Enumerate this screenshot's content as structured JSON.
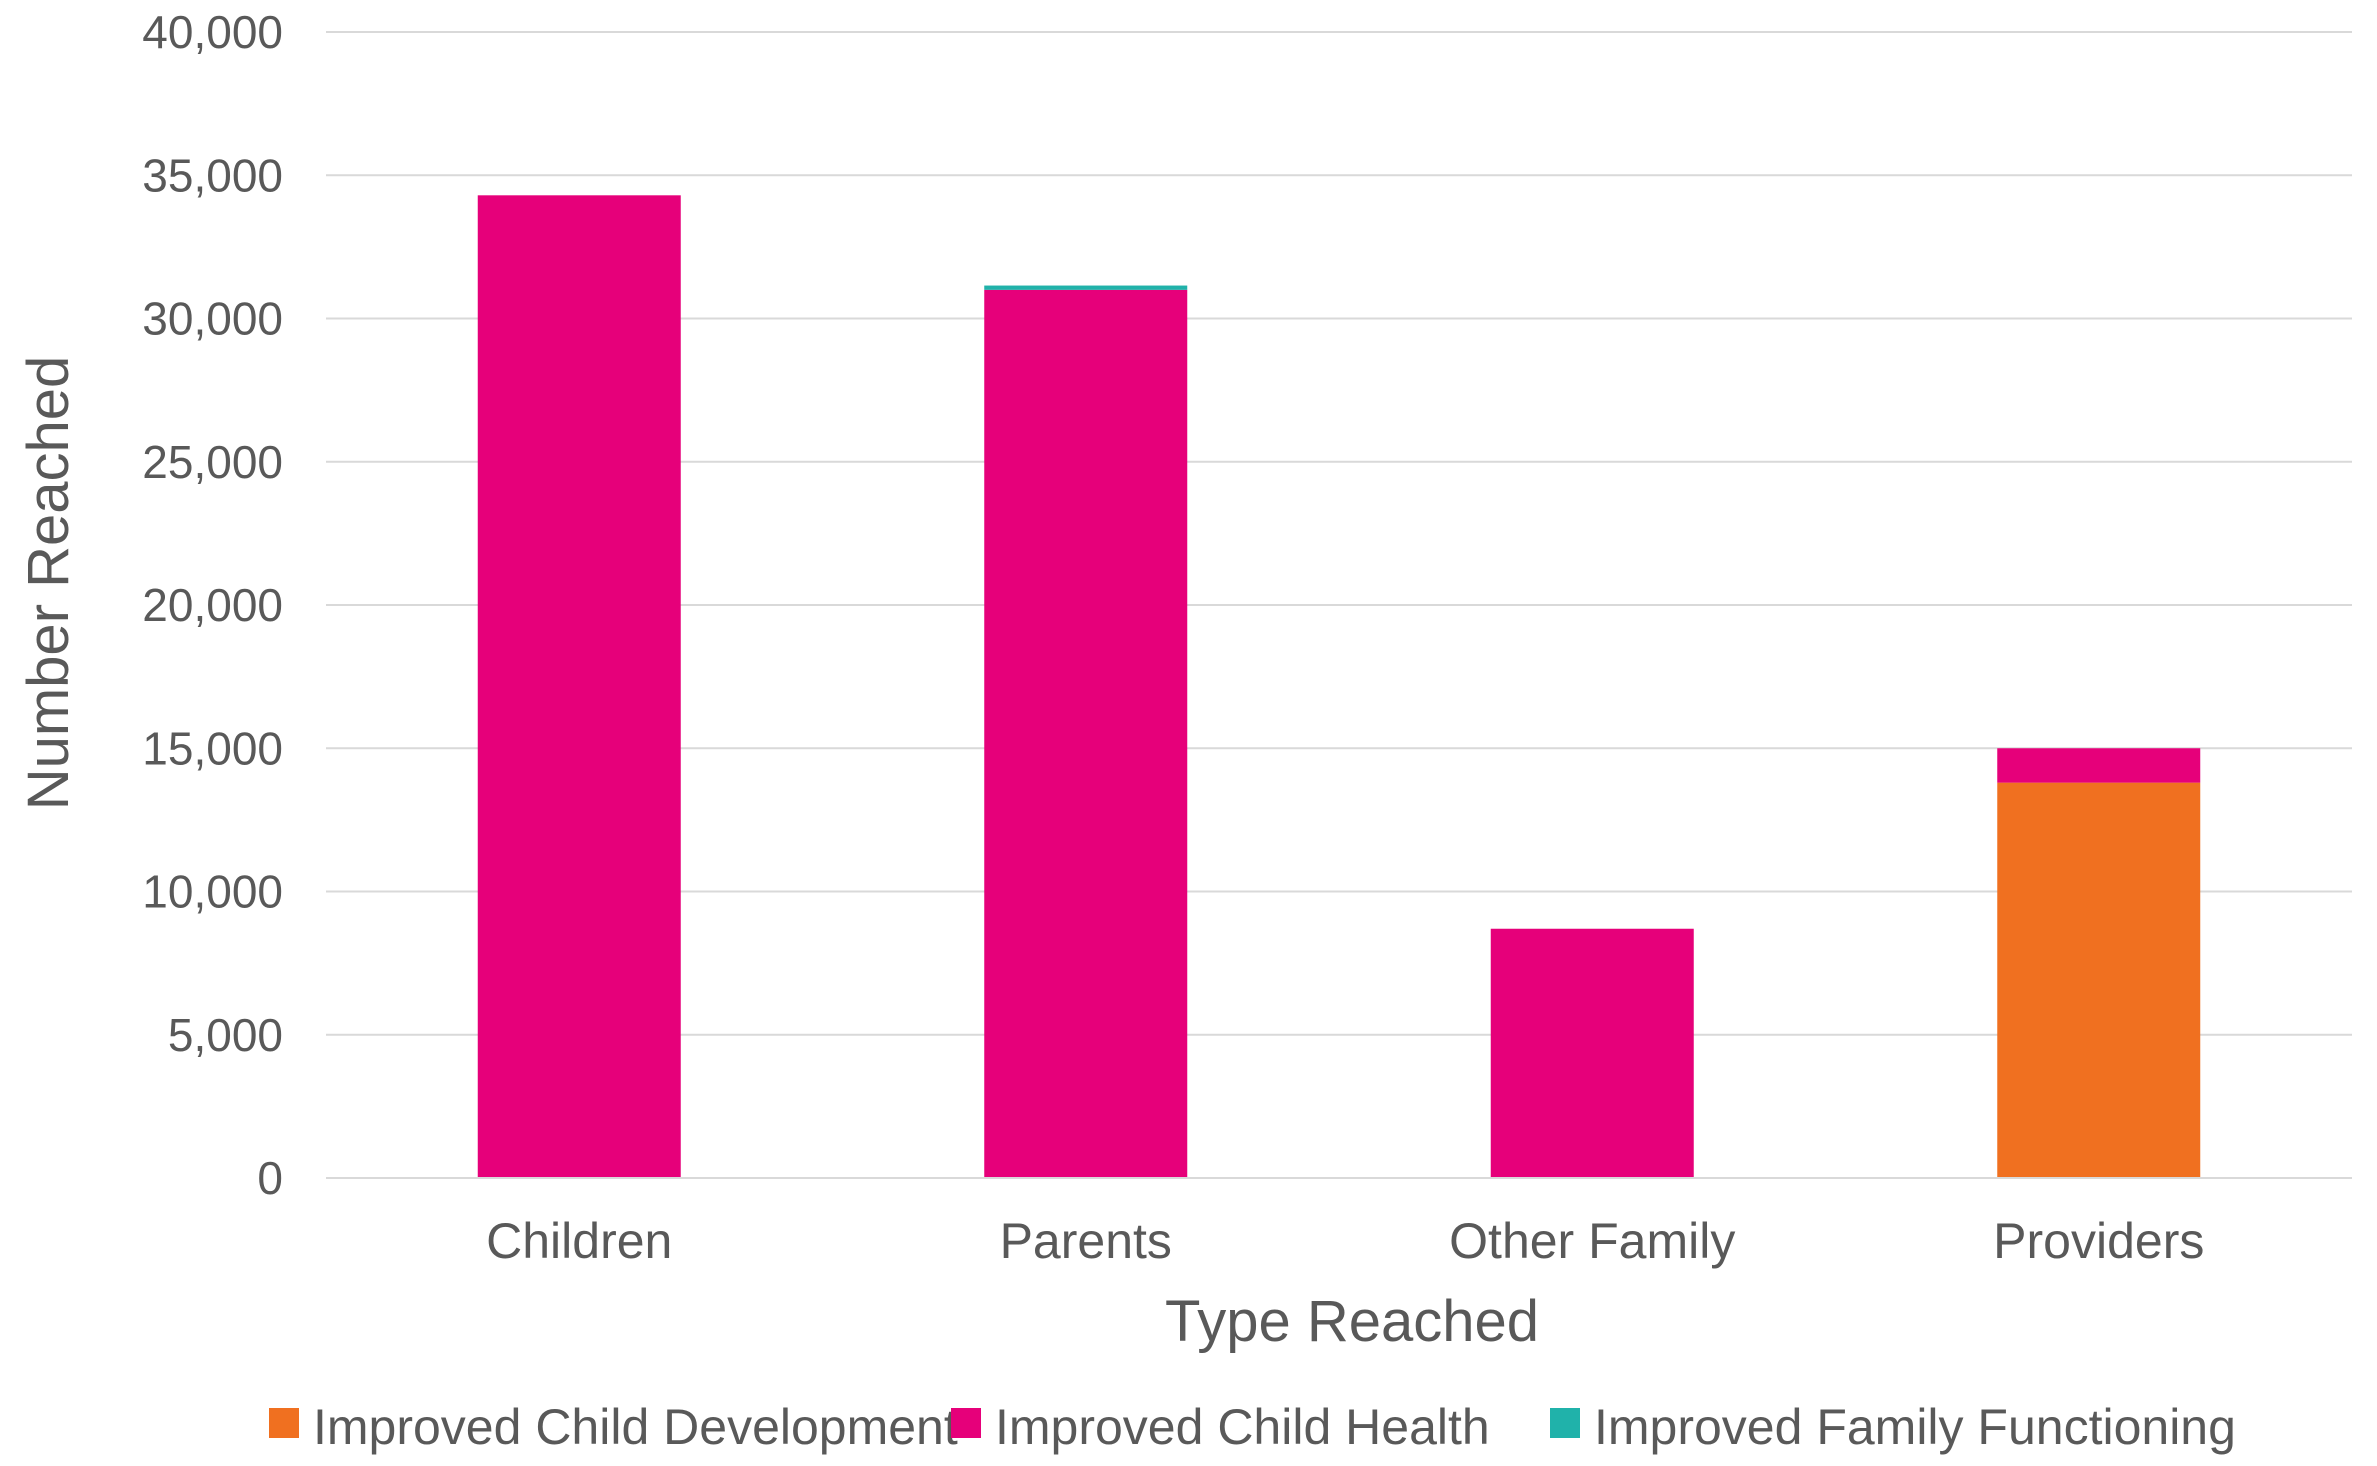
{
  "chart_data": {
    "type": "bar",
    "stacked": true,
    "categories": [
      "Children",
      "Parents",
      "Other Family",
      "Providers"
    ],
    "series": [
      {
        "name": "Improved Child Development",
        "color": "#f07020",
        "values": [
          0,
          0,
          0,
          13800
        ]
      },
      {
        "name": "Improved Child Health",
        "color": "#e6007a",
        "values": [
          34300,
          31000,
          8700,
          1200
        ]
      },
      {
        "name": "Improved Family Functioning",
        "color": "#20b2aa",
        "values": [
          0,
          150,
          0,
          0
        ]
      }
    ],
    "xlabel": "Type Reached",
    "ylabel": "Number Reached",
    "ylim": [
      0,
      40000
    ],
    "yticks": [
      0,
      5000,
      10000,
      15000,
      20000,
      25000,
      30000,
      35000,
      40000
    ],
    "ytick_labels": [
      "0",
      "5,000",
      "10,000",
      "15,000",
      "20,000",
      "25,000",
      "30,000",
      "35,000",
      "40,000"
    ],
    "grid": true,
    "legend_position": "bottom"
  }
}
